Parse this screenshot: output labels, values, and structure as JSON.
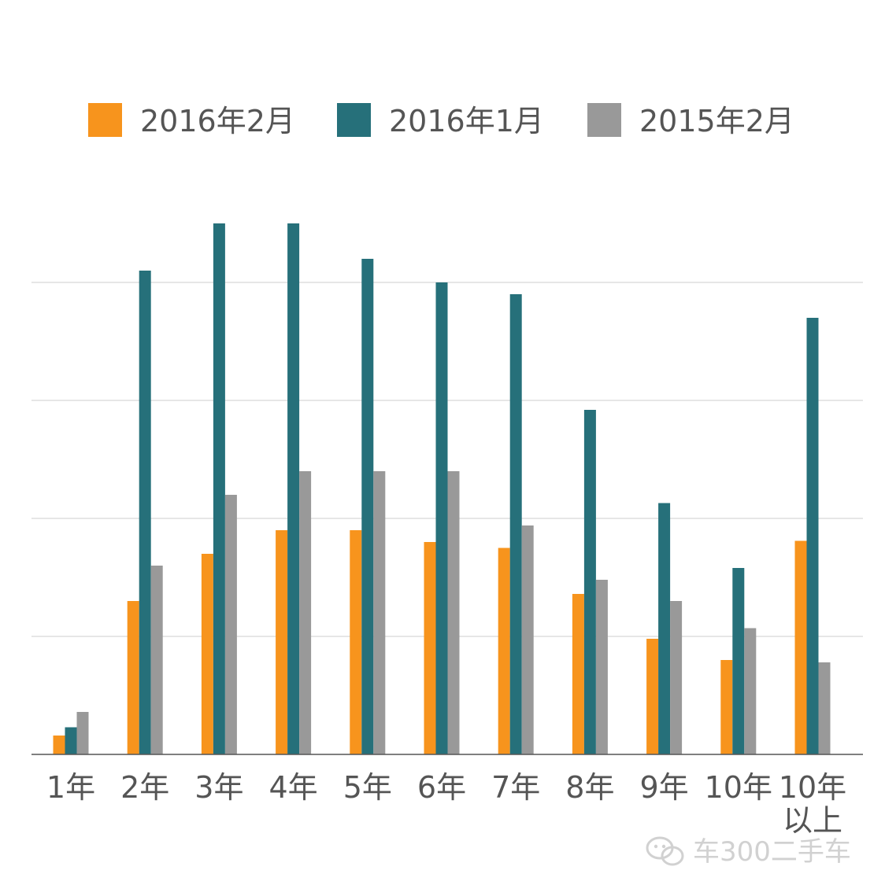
{
  "chart_data": {
    "type": "bar",
    "title": "",
    "xlabel": "",
    "ylabel": "",
    "categories": [
      "1年",
      "2年",
      "3年",
      "4年",
      "5年",
      "6年",
      "7年",
      "8年",
      "9年",
      "10年",
      "10年以上"
    ],
    "category_lines": [
      [
        "1年"
      ],
      [
        "2年"
      ],
      [
        "3年"
      ],
      [
        "4年"
      ],
      [
        "5年"
      ],
      [
        "6年"
      ],
      [
        "7年"
      ],
      [
        "8年"
      ],
      [
        "9年"
      ],
      [
        "10年"
      ],
      [
        "10年",
        "以上"
      ]
    ],
    "series": [
      {
        "name": "2016年2月",
        "color": "#f7941d",
        "values": [
          0.8,
          6.5,
          8.5,
          9.5,
          9.5,
          9.0,
          8.75,
          6.8,
          4.9,
          4.0,
          9.05
        ]
      },
      {
        "name": "2016年1月",
        "color": "#26707a",
        "values": [
          1.15,
          20.5,
          22.5,
          22.5,
          21.0,
          20.0,
          19.5,
          14.6,
          10.65,
          7.9,
          18.5
        ]
      },
      {
        "name": "2015年2月",
        "color": "#999999",
        "values": [
          1.8,
          8.0,
          11.0,
          12.0,
          12.0,
          12.0,
          9.7,
          7.4,
          6.5,
          5.35,
          3.9
        ]
      }
    ],
    "ylim": [
      0,
      22.5
    ],
    "gridlines": [
      5,
      10,
      15,
      20
    ],
    "y_tick_labels_shown": false,
    "grid": true,
    "legend_position": "top"
  },
  "watermark": {
    "icon": "wechat-icon",
    "text": "车300二手车"
  }
}
